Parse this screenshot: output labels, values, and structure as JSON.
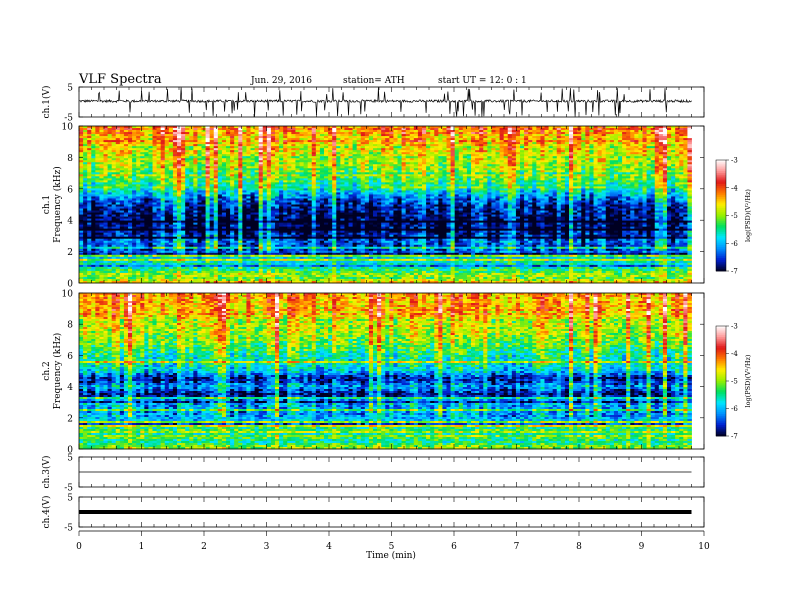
{
  "header": {
    "title": "VLF  Spectra",
    "date": "Jun. 29, 2016",
    "station": "station= ATH",
    "start": "start  UT =   12: 0  : 1"
  },
  "colorbar": {
    "label": "log(PSD)(V²/Hz)",
    "ticks": [
      "-3",
      "-4",
      "-5",
      "-6",
      "-7"
    ],
    "colors": [
      "#ffffff",
      "#ff9a9a",
      "#e01818",
      "#ff7a00",
      "#ffee00",
      "#96f000",
      "#00e060",
      "#00e6ff",
      "#0090ff",
      "#0020d0",
      "#000022"
    ]
  },
  "chart_data": [
    {
      "type": "line",
      "name": "ch1-waveform",
      "ylabel": "ch.1(V)",
      "yticks": [
        "5",
        "-5"
      ],
      "ylim": [
        -5,
        5
      ],
      "xlim": [
        0,
        10
      ],
      "samples_min": 9.8,
      "baseline": 0.3,
      "noise": 0.4,
      "spikes": 60
    },
    {
      "type": "heatmap",
      "name": "ch1-spectrogram",
      "ylabel": "ch.1\nFrequency  (kHz)",
      "yticks": [
        "10",
        "8",
        "6",
        "4",
        "2",
        "0"
      ],
      "ylim": [
        0,
        10
      ],
      "xlim": [
        0,
        9.8
      ],
      "zlim": [
        -7,
        -3
      ],
      "profile_khz": [
        0.1,
        0.3,
        0.5,
        0.8,
        1.0,
        1.5,
        1.8,
        2.2,
        2.6,
        3.0,
        3.5,
        4.0,
        4.5,
        5.0,
        5.5,
        6.0,
        6.5,
        7.0,
        7.5,
        8.0,
        8.5,
        9.0,
        9.5,
        10.0
      ],
      "profile_log_psd": [
        -4.6,
        -5.2,
        -4.9,
        -5.4,
        -5.6,
        -5.8,
        -6.0,
        -6.6,
        -6.3,
        -6.7,
        -6.9,
        -6.9,
        -6.8,
        -6.6,
        -6.2,
        -5.6,
        -5.3,
        -5.1,
        -4.9,
        -4.8,
        -4.6,
        -4.5,
        -4.4,
        -4.3
      ]
    },
    {
      "type": "heatmap",
      "name": "ch2-spectrogram",
      "ylabel": "ch.2\nFrequency  (kHz)",
      "yticks": [
        "10",
        "8",
        "6",
        "4",
        "2",
        "0"
      ],
      "ylim": [
        0,
        10
      ],
      "xlim": [
        0,
        9.8
      ],
      "zlim": [
        -7,
        -3
      ],
      "profile_khz": [
        0.1,
        0.5,
        1.0,
        1.2,
        1.5,
        2.0,
        2.5,
        3.0,
        3.5,
        4.0,
        4.5,
        5.0,
        5.5,
        6.0,
        6.5,
        7.0,
        7.5,
        8.0,
        8.5,
        9.0,
        9.5,
        10.0
      ],
      "profile_log_psd": [
        -5.0,
        -5.6,
        -4.8,
        -5.2,
        -5.7,
        -6.0,
        -6.1,
        -5.9,
        -6.8,
        -6.0,
        -6.7,
        -5.8,
        -5.6,
        -5.5,
        -5.2,
        -5.0,
        -4.8,
        -4.7,
        -4.5,
        -4.4,
        -4.3,
        -4.2
      ]
    },
    {
      "type": "line",
      "name": "ch3-waveform",
      "ylabel": "ch.3(V)",
      "yticks": [
        "5",
        "-5"
      ],
      "ylim": [
        -5,
        5
      ],
      "xlim": [
        0,
        10
      ],
      "level": 0
    },
    {
      "type": "line",
      "name": "ch4-waveform",
      "ylabel": "ch.4(V)",
      "yticks": [
        "5",
        "-5"
      ],
      "ylim": [
        -5,
        5
      ],
      "xlim": [
        0,
        10
      ],
      "level": 0
    }
  ],
  "xaxis": {
    "label": "Time  (min)",
    "ticks": [
      "0",
      "1",
      "2",
      "3",
      "4",
      "5",
      "6",
      "7",
      "8",
      "9",
      "10"
    ]
  }
}
